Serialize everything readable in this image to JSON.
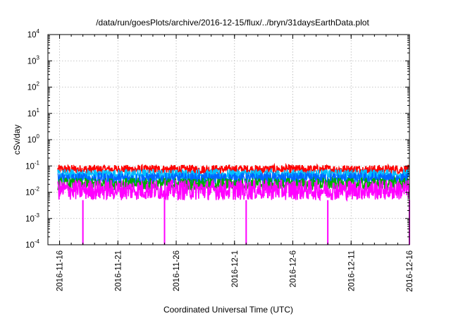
{
  "chart_data": {
    "type": "line",
    "title": "/data/run/goesPlots/archive/2016-12-15/flux/../bryn/31daysEarthData.plot",
    "xlabel": "Coordinated Universal Time (UTC)",
    "ylabel": "cSv/day",
    "yscale": "log",
    "ylim": [
      0.0001,
      10000
    ],
    "xlim": [
      "2016-11-15",
      "2016-12-16"
    ],
    "grid": true,
    "x_ticks": [
      "2016-11-16",
      "2016-11-21",
      "2016-11-26",
      "2016-12-1",
      "2016-12-6",
      "2016-12-11",
      "2016-12-16"
    ],
    "y_ticks": [
      {
        "base": "10",
        "exp": "-4",
        "value": 0.0001
      },
      {
        "base": "10",
        "exp": "-3",
        "value": 0.001
      },
      {
        "base": "10",
        "exp": "-2",
        "value": 0.01
      },
      {
        "base": "10",
        "exp": "-1",
        "value": 0.1
      },
      {
        "base": "10",
        "exp": "0",
        "value": 1
      },
      {
        "base": "10",
        "exp": "1",
        "value": 10
      },
      {
        "base": "10",
        "exp": "2",
        "value": 100
      },
      {
        "base": "10",
        "exp": "3",
        "value": 1000
      },
      {
        "base": "10",
        "exp": "4",
        "value": 10000
      }
    ],
    "series": [
      {
        "color": "#ff0000",
        "band_low": 0.05,
        "band_high": 0.11
      },
      {
        "color": "#00bfff",
        "band_low": 0.03,
        "band_high": 0.075
      },
      {
        "color": "#0066ff",
        "band_low": 0.02,
        "band_high": 0.055
      },
      {
        "color": "#00aa00",
        "band_low": 0.012,
        "band_high": 0.035
      },
      {
        "color": "#ff00ff",
        "band_low": 0.005,
        "band_high": 0.03,
        "dropouts": [
          "2016-11-18",
          "2016-11-25",
          "2016-12-2",
          "2016-12-9",
          "2016-12-16"
        ],
        "dropout_value": 0.0001
      }
    ]
  }
}
